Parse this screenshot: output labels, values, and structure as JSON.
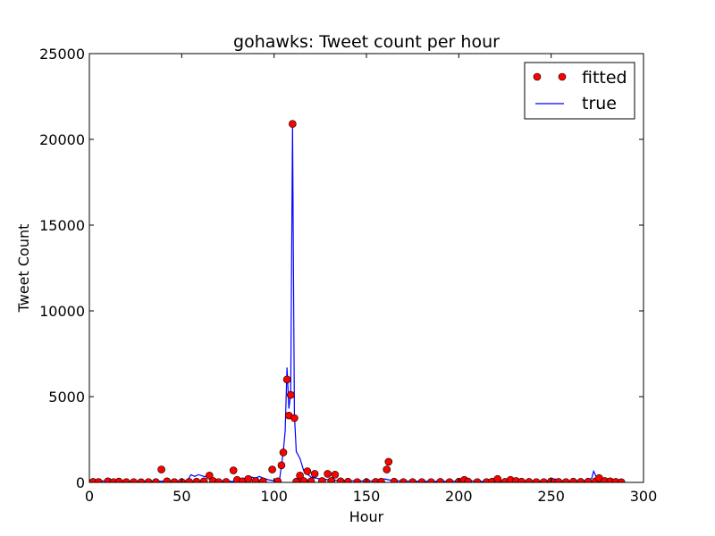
{
  "chart_data": {
    "type": "line",
    "title": "gohawks: Tweet count per hour",
    "xlabel": "Hour",
    "ylabel": "Tweet Count",
    "xlim": [
      0,
      300
    ],
    "ylim": [
      0,
      25000
    ],
    "xticks": [
      0,
      50,
      100,
      150,
      200,
      250,
      300
    ],
    "yticks": [
      0,
      5000,
      10000,
      15000,
      20000,
      25000
    ],
    "grid": false,
    "legend_position": "top-right",
    "series": [
      {
        "name": "fitted",
        "kind": "scatter",
        "color": "#ff0000",
        "points": [
          [
            2,
            30
          ],
          [
            5,
            25
          ],
          [
            10,
            60
          ],
          [
            13,
            20
          ],
          [
            16,
            50
          ],
          [
            20,
            15
          ],
          [
            24,
            20
          ],
          [
            28,
            10
          ],
          [
            32,
            20
          ],
          [
            36,
            15
          ],
          [
            39,
            750
          ],
          [
            42,
            60
          ],
          [
            46,
            15
          ],
          [
            50,
            20
          ],
          [
            54,
            30
          ],
          [
            58,
            40
          ],
          [
            62,
            60
          ],
          [
            65,
            400
          ],
          [
            67,
            80
          ],
          [
            70,
            20
          ],
          [
            74,
            25
          ],
          [
            78,
            700
          ],
          [
            80,
            150
          ],
          [
            83,
            60
          ],
          [
            86,
            200
          ],
          [
            90,
            80
          ],
          [
            94,
            60
          ],
          [
            99,
            750
          ],
          [
            102,
            60
          ],
          [
            104,
            1000
          ],
          [
            105,
            1750
          ],
          [
            107,
            6000
          ],
          [
            108,
            3900
          ],
          [
            109,
            5100
          ],
          [
            110,
            20900
          ],
          [
            111,
            3750
          ],
          [
            112,
            40
          ],
          [
            114,
            400
          ],
          [
            116,
            80
          ],
          [
            118,
            650
          ],
          [
            120,
            60
          ],
          [
            122,
            500
          ],
          [
            126,
            80
          ],
          [
            129,
            500
          ],
          [
            131,
            80
          ],
          [
            133,
            450
          ],
          [
            136,
            60
          ],
          [
            140,
            40
          ],
          [
            145,
            20
          ],
          [
            150,
            15
          ],
          [
            155,
            30
          ],
          [
            158,
            40
          ],
          [
            161,
            750
          ],
          [
            162,
            1200
          ],
          [
            165,
            40
          ],
          [
            170,
            20
          ],
          [
            175,
            15
          ],
          [
            180,
            20
          ],
          [
            185,
            20
          ],
          [
            190,
            30
          ],
          [
            195,
            15
          ],
          [
            200,
            40
          ],
          [
            203,
            150
          ],
          [
            205,
            50
          ],
          [
            210,
            20
          ],
          [
            215,
            15
          ],
          [
            218,
            40
          ],
          [
            221,
            200
          ],
          [
            225,
            30
          ],
          [
            228,
            150
          ],
          [
            231,
            80
          ],
          [
            234,
            40
          ],
          [
            238,
            30
          ],
          [
            242,
            20
          ],
          [
            246,
            20
          ],
          [
            250,
            60
          ],
          [
            254,
            30
          ],
          [
            258,
            20
          ],
          [
            262,
            40
          ],
          [
            266,
            30
          ],
          [
            270,
            40
          ],
          [
            274,
            60
          ],
          [
            276,
            250
          ],
          [
            279,
            80
          ],
          [
            282,
            60
          ],
          [
            285,
            30
          ],
          [
            288,
            10
          ]
        ]
      },
      {
        "name": "true",
        "kind": "line",
        "color": "#0000ff",
        "points": [
          [
            0,
            60
          ],
          [
            5,
            70
          ],
          [
            10,
            90
          ],
          [
            15,
            80
          ],
          [
            20,
            60
          ],
          [
            25,
            50
          ],
          [
            30,
            50
          ],
          [
            35,
            60
          ],
          [
            40,
            70
          ],
          [
            45,
            60
          ],
          [
            50,
            60
          ],
          [
            53,
            100
          ],
          [
            55,
            450
          ],
          [
            57,
            350
          ],
          [
            59,
            450
          ],
          [
            62,
            350
          ],
          [
            65,
            300
          ],
          [
            67,
            150
          ],
          [
            70,
            80
          ],
          [
            75,
            60
          ],
          [
            80,
            60
          ],
          [
            84,
            200
          ],
          [
            86,
            350
          ],
          [
            88,
            300
          ],
          [
            90,
            250
          ],
          [
            92,
            350
          ],
          [
            94,
            250
          ],
          [
            97,
            150
          ],
          [
            100,
            100
          ],
          [
            103,
            200
          ],
          [
            105,
            1800
          ],
          [
            106,
            3000
          ],
          [
            107,
            6700
          ],
          [
            108,
            4300
          ],
          [
            109,
            5200
          ],
          [
            110,
            20800
          ],
          [
            111,
            4000
          ],
          [
            112,
            1800
          ],
          [
            114,
            1400
          ],
          [
            116,
            700
          ],
          [
            118,
            500
          ],
          [
            120,
            300
          ],
          [
            125,
            200
          ],
          [
            130,
            150
          ],
          [
            135,
            120
          ],
          [
            140,
            100
          ],
          [
            150,
            80
          ],
          [
            155,
            80
          ],
          [
            160,
            200
          ],
          [
            162,
            150
          ],
          [
            165,
            100
          ],
          [
            170,
            80
          ],
          [
            180,
            60
          ],
          [
            190,
            60
          ],
          [
            200,
            80
          ],
          [
            205,
            100
          ],
          [
            210,
            60
          ],
          [
            220,
            60
          ],
          [
            230,
            80
          ],
          [
            240,
            60
          ],
          [
            248,
            80
          ],
          [
            252,
            200
          ],
          [
            255,
            80
          ],
          [
            260,
            60
          ],
          [
            265,
            80
          ],
          [
            270,
            100
          ],
          [
            272,
            250
          ],
          [
            273,
            650
          ],
          [
            275,
            200
          ],
          [
            278,
            100
          ],
          [
            282,
            80
          ],
          [
            285,
            60
          ],
          [
            288,
            30
          ]
        ]
      }
    ]
  }
}
